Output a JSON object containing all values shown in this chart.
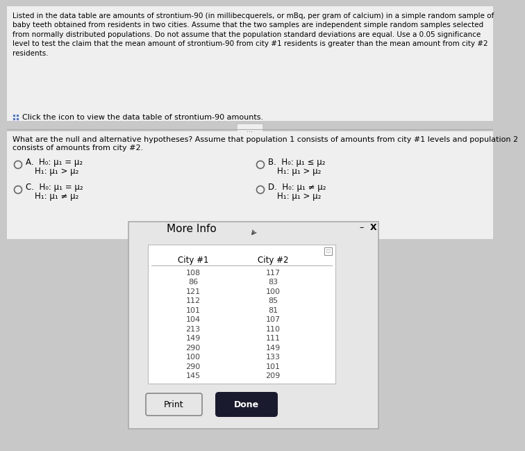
{
  "bg_color": "#c8c8c8",
  "top_panel_color": "#efefef",
  "mid_panel_color": "#e8e8e8",
  "modal_color": "#e0e0e0",
  "top_text_line1": "Listed in the data table are amounts of strontium-90 (in millibecquerels, or mBq, per gram of calcium) in a simple random sample of",
  "top_text_line2": "baby teeth obtained from residents in two cities. Assume that the two samples are independent simple random samples selected",
  "top_text_line3": "from normally distributed populations. Do not assume that the population standard deviations are equal. Use a 0.05 significance",
  "top_text_line4": "level to test the claim that the mean amount of strontium-90 from city #1 residents is greater than the mean amount from city #2",
  "top_text_line5": "residents.",
  "click_text": "Click the icon to view the data table of strontium-90 amounts.",
  "question_line1": "What are the null and alternative hypotheses? Assume that population 1 consists of amounts from city #1 levels and population 2",
  "question_line2": "consists of amounts from city #2.",
  "opt_A_h0": "H₀: μ₁ = μ₂",
  "opt_A_h1": "H₁: μ₁ > μ₂",
  "opt_B_h0": "H₀: μ₁ ≤ μ₂",
  "opt_B_h1": "H₁: μ₁ > μ₂",
  "opt_C_h0": "H₀: μ₁ = μ₂",
  "opt_C_h1": "H₁: μ₁ ≠ μ₂",
  "opt_D_h0": "H₀: μ₁ ≠ μ₂",
  "opt_D_h1": "H₁: μ₁ > μ₂",
  "more_info_title": "More Info",
  "city1_header": "City #1",
  "city2_header": "City #2",
  "city1_data": [
    108,
    86,
    121,
    112,
    101,
    104,
    213,
    149,
    290,
    100,
    290,
    145
  ],
  "city2_data": [
    117,
    83,
    100,
    85,
    81,
    107,
    110,
    111,
    149,
    133,
    101,
    209
  ],
  "print_btn": "Print",
  "done_btn": "Done",
  "separator_text": "..."
}
